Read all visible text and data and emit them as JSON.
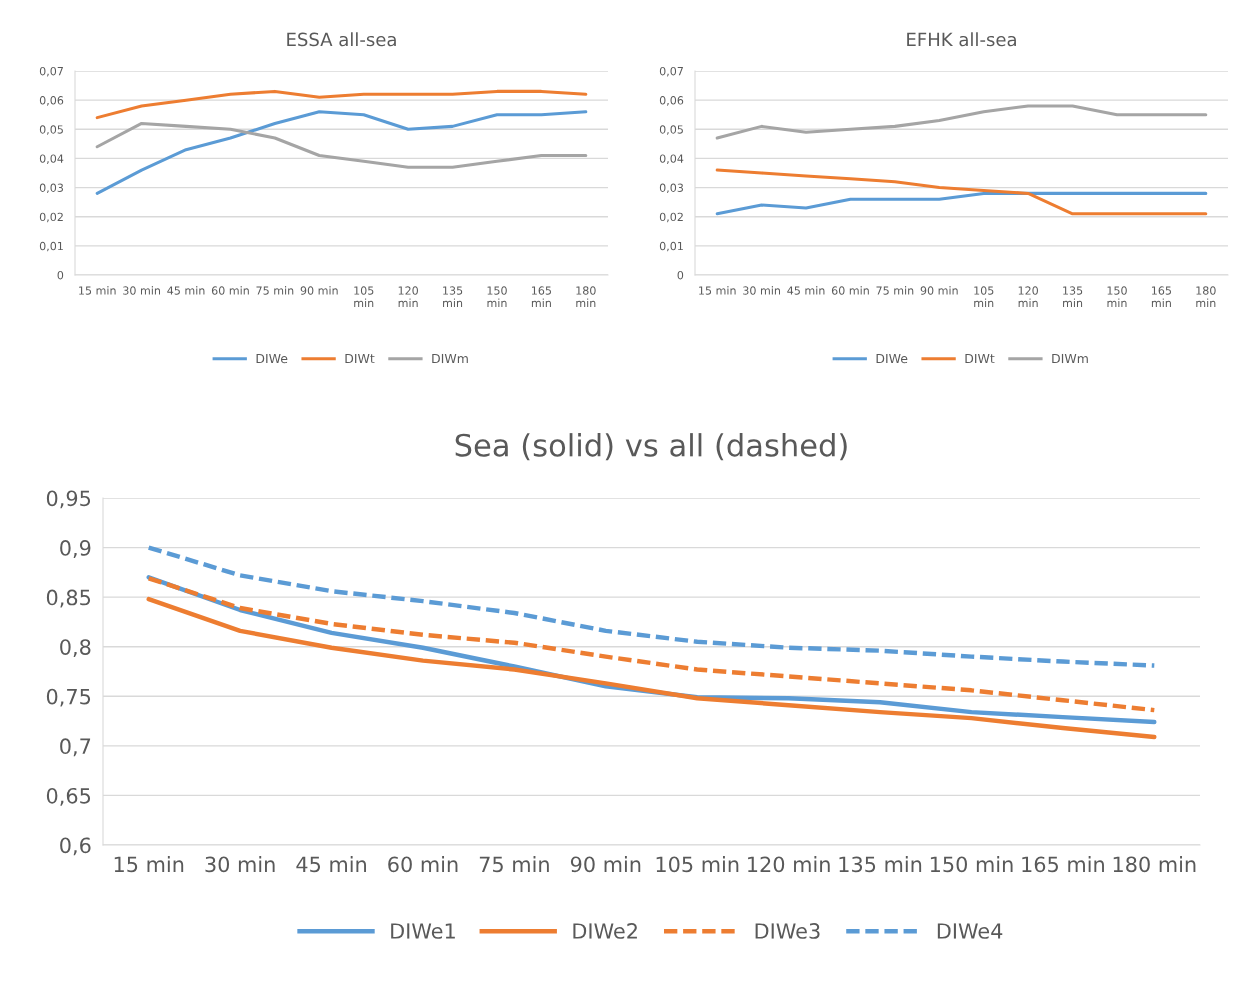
{
  "chart_data": [
    {
      "type": "line",
      "title": "ESSA all-sea",
      "categories": [
        "15 min",
        "30 min",
        "45 min",
        "60 min",
        "75 min",
        "90 min",
        "105 min",
        "120 min",
        "135 min",
        "150 min",
        "165 min",
        "180 min"
      ],
      "series": [
        {
          "name": "DIWe",
          "color": "#5b9bd5",
          "values": [
            0.028,
            0.036,
            0.043,
            0.047,
            0.052,
            0.056,
            0.055,
            0.05,
            0.051,
            0.055,
            0.055,
            0.056
          ]
        },
        {
          "name": "DIWt",
          "color": "#ed7d31",
          "values": [
            0.054,
            0.058,
            0.06,
            0.062,
            0.063,
            0.061,
            0.062,
            0.062,
            0.062,
            0.063,
            0.063,
            0.062
          ]
        },
        {
          "name": "DIWm",
          "color": "#a5a5a5",
          "values": [
            0.044,
            0.052,
            0.051,
            0.05,
            0.047,
            0.041,
            0.039,
            0.037,
            0.037,
            0.039,
            0.041,
            0.041
          ]
        }
      ],
      "ylim": [
        0,
        0.07
      ],
      "yticks": [
        0,
        {
          "value": 0.01,
          "label": "0,01"
        },
        {
          "value": 0.02,
          "label": "0,02"
        },
        {
          "value": 0.03,
          "label": "0,03"
        },
        {
          "value": 0.04,
          "label": "0,04"
        },
        {
          "value": 0.05,
          "label": "0,05"
        },
        {
          "value": 0.06,
          "label": "0,06"
        },
        {
          "value": 0.07,
          "label": "0,07"
        }
      ],
      "grid": "y",
      "legend": "bottom",
      "marker": "none",
      "line_style": "solid"
    },
    {
      "type": "line",
      "title": "EFHK all-sea",
      "categories": [
        "15 min",
        "30 min",
        "45 min",
        "60 min",
        "75 min",
        "90 min",
        "105 min",
        "120 min",
        "135 min",
        "150 min",
        "165 min",
        "180 min"
      ],
      "series": [
        {
          "name": "DIWe",
          "color": "#5b9bd5",
          "values": [
            0.021,
            0.024,
            0.023,
            0.026,
            0.026,
            0.026,
            0.028,
            0.028,
            0.028,
            0.028,
            0.028,
            0.028
          ]
        },
        {
          "name": "DIWt",
          "color": "#ed7d31",
          "values": [
            0.036,
            0.035,
            0.034,
            0.033,
            0.032,
            0.03,
            0.029,
            0.028,
            0.021,
            0.021,
            0.021,
            0.021
          ]
        },
        {
          "name": "DIWm",
          "color": "#a5a5a5",
          "values": [
            0.047,
            0.051,
            0.049,
            0.05,
            0.051,
            0.053,
            0.056,
            0.058,
            0.058,
            0.055,
            0.055,
            0.055
          ]
        }
      ],
      "ylim": [
        0,
        0.07
      ],
      "yticks": [
        0,
        {
          "value": 0.01,
          "label": "0,01"
        },
        {
          "value": 0.02,
          "label": "0,02"
        },
        {
          "value": 0.03,
          "label": "0,03"
        },
        {
          "value": 0.04,
          "label": "0,04"
        },
        {
          "value": 0.05,
          "label": "0,05"
        },
        {
          "value": 0.06,
          "label": "0,06"
        },
        {
          "value": 0.07,
          "label": "0,07"
        }
      ],
      "grid": "y",
      "legend": "bottom",
      "marker": "none",
      "line_style": "solid"
    },
    {
      "type": "line",
      "title": "Sea (solid) vs all (dashed)",
      "categories": [
        "15 min",
        "30 min",
        "45 min",
        "60 min",
        "75 min",
        "90 min",
        "105 min",
        "120 min",
        "135 min",
        "150 min",
        "165 min",
        "180 min"
      ],
      "series": [
        {
          "name": "DIWe1",
          "color": "#5b9bd5",
          "line_style": "solid",
          "values": [
            0.87,
            0.837,
            0.814,
            0.799,
            0.78,
            0.76,
            0.749,
            0.748,
            0.744,
            0.734,
            0.729,
            0.724
          ]
        },
        {
          "name": "DIWe2",
          "color": "#ed7d31",
          "line_style": "solid",
          "values": [
            0.848,
            0.816,
            0.799,
            0.786,
            0.777,
            0.763,
            0.748,
            0.741,
            0.734,
            0.728,
            0.718,
            0.709
          ]
        },
        {
          "name": "DIWe3",
          "color": "#ed7d31",
          "line_style": "dashed",
          "values": [
            0.869,
            0.839,
            0.823,
            0.812,
            0.804,
            0.79,
            0.777,
            0.77,
            0.763,
            0.756,
            0.746,
            0.736
          ]
        },
        {
          "name": "DIWe4",
          "color": "#5b9bd5",
          "line_style": "dashed",
          "values": [
            0.9,
            0.872,
            0.856,
            0.846,
            0.834,
            0.816,
            0.805,
            0.799,
            0.796,
            0.79,
            0.785,
            0.781
          ]
        }
      ],
      "ylim": [
        0.6,
        0.95
      ],
      "yticks": [
        {
          "value": 0.6,
          "label": "0,6"
        },
        {
          "value": 0.65,
          "label": "0,65"
        },
        {
          "value": 0.7,
          "label": "0,7"
        },
        {
          "value": 0.75,
          "label": "0,75"
        },
        {
          "value": 0.8,
          "label": "0,8"
        },
        {
          "value": 0.85,
          "label": "0,85"
        },
        {
          "value": 0.9,
          "label": "0,9"
        },
        {
          "value": 0.95,
          "label": "0,95"
        }
      ],
      "grid": "y",
      "legend": "bottom",
      "marker": "none"
    }
  ]
}
